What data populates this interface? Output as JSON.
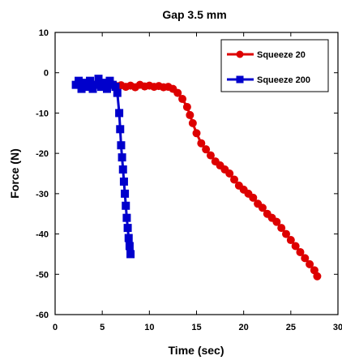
{
  "chart_data": {
    "type": "scatter",
    "title": "Gap 3.5 mm",
    "xlabel": "Time (sec)",
    "ylabel": "Force (N)",
    "xlim": [
      0,
      30
    ],
    "ylim": [
      -60,
      10
    ],
    "xticks": [
      0,
      5,
      10,
      15,
      20,
      25,
      30
    ],
    "yticks": [
      10,
      0,
      -10,
      -20,
      -30,
      -40,
      -50,
      -60
    ],
    "grid": false,
    "legend_position": "top-right",
    "series": [
      {
        "name": "Squeeze 20",
        "color": "#dd0000",
        "marker": "circle",
        "x": [
          2.5,
          3.0,
          3.5,
          4.0,
          4.5,
          5.0,
          5.5,
          6.0,
          6.5,
          7.0,
          7.5,
          8.0,
          8.5,
          9.0,
          9.5,
          10.0,
          10.5,
          11.0,
          11.5,
          12.0,
          12.5,
          13.0,
          13.5,
          14.0,
          14.3,
          14.6,
          15.0,
          15.5,
          16.0,
          16.5,
          17.0,
          17.5,
          18.0,
          18.5,
          19.0,
          19.5,
          20.0,
          20.5,
          21.0,
          21.5,
          22.0,
          22.5,
          23.0,
          23.5,
          24.0,
          24.5,
          25.0,
          25.5,
          26.0,
          26.5,
          27.0,
          27.5,
          27.8
        ],
        "y": [
          -2.5,
          -3.5,
          -2.8,
          -3.2,
          -2.6,
          -3.0,
          -3.4,
          -2.8,
          -3.3,
          -3.1,
          -3.5,
          -3.2,
          -3.6,
          -3.0,
          -3.4,
          -3.2,
          -3.5,
          -3.3,
          -3.6,
          -3.5,
          -4.0,
          -5.0,
          -6.5,
          -8.5,
          -10.5,
          -12.5,
          -15.0,
          -17.5,
          -19.0,
          -20.5,
          -22.0,
          -23.0,
          -24.0,
          -25.0,
          -26.5,
          -28.0,
          -29.0,
          -30.0,
          -31.0,
          -32.5,
          -33.5,
          -35.0,
          -36.0,
          -37.0,
          -38.5,
          -40.0,
          -41.5,
          -43.0,
          -44.5,
          -46.0,
          -47.5,
          -49.0,
          -50.5
        ]
      },
      {
        "name": "Squeeze 200",
        "color": "#0000cc",
        "marker": "square",
        "x": [
          2.2,
          2.5,
          2.8,
          3.1,
          3.4,
          3.7,
          4.0,
          4.3,
          4.6,
          4.9,
          5.2,
          5.5,
          5.8,
          6.1,
          6.4,
          6.6,
          6.8,
          6.9,
          7.0,
          7.1,
          7.2,
          7.3,
          7.4,
          7.5,
          7.6,
          7.7,
          7.8,
          7.9,
          8.0
        ],
        "y": [
          -3.0,
          -2.0,
          -4.0,
          -2.5,
          -3.5,
          -2.0,
          -4.0,
          -3.0,
          -1.5,
          -3.5,
          -2.5,
          -4.0,
          -2.0,
          -3.0,
          -3.5,
          -5.0,
          -10.0,
          -14.0,
          -18.0,
          -21.0,
          -24.0,
          -27.0,
          -30.0,
          -33.0,
          -36.0,
          -38.5,
          -41.0,
          -43.0,
          -45.0
        ]
      }
    ]
  }
}
